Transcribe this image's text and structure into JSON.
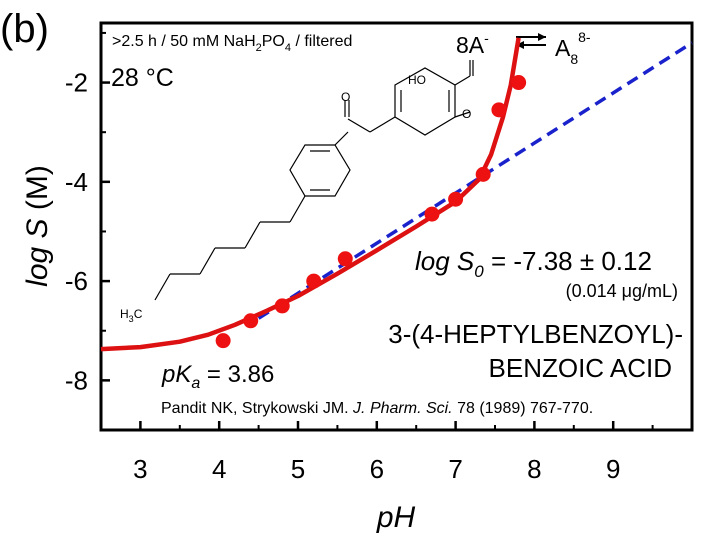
{
  "panel_label": "(b)",
  "conditions": "&gt;2.5 h / 50 mM NaH2PO4 / filtered",
  "temperature": "28 °C",
  "equilibrium": {
    "left": "8A",
    "left_sup": "-",
    "right": "A",
    "right_sub": "8",
    "right_sup": "8-"
  },
  "log_s0": {
    "prefix": "log S",
    "sub": "0",
    "value": " = -7.38 ± 0.12",
    "mass": "(0.014 μg/mL)"
  },
  "pka": {
    "prefix": "pK",
    "sub": "a",
    "value": " = 3.86"
  },
  "compound": {
    "line1": "3-(4-HEPTYLBENZOYL)-",
    "line2": "BENZOIC ACID"
  },
  "citation": {
    "authors": "Pandit NK, Strykowski JM. ",
    "journal": "J. Pharm. Sci.",
    "details": " 78 (1989) 767-770."
  },
  "structure_labels": {
    "oh": "HO",
    "carbonyl_o": "O",
    "acid_o": "O",
    "methyl": "H3C"
  },
  "colors": {
    "fit": "#dd1111",
    "intrinsic": "#1a22cc",
    "points": "#ee1111"
  },
  "chart_data": {
    "type": "scatter",
    "xlabel": "pH",
    "ylabel": "log S (M)",
    "xlim": [
      2.5,
      10.0
    ],
    "ylim": [
      -9.0,
      -0.8
    ],
    "xticks": [
      3,
      4,
      5,
      6,
      7,
      8,
      9
    ],
    "yticks": [
      -2,
      -4,
      -6,
      -8
    ],
    "series": [
      {
        "points": [
          {
            "x": 4.05,
            "y": -7.2
          },
          {
            "x": 4.4,
            "y": -6.8
          },
          {
            "x": 4.8,
            "y": -6.5
          },
          {
            "x": 5.2,
            "y": -6.0
          },
          {
            "x": 5.6,
            "y": -5.55
          },
          {
            "x": 6.7,
            "y": -4.65
          },
          {
            "x": 7.0,
            "y": -4.35
          },
          {
            "x": 7.35,
            "y": -3.85
          },
          {
            "x": 7.55,
            "y": -2.55
          },
          {
            "x": 7.8,
            "y": -2.0
          }
        ]
      }
    ],
    "fit_curve": {
      "x": [
        2.5,
        3.0,
        3.5,
        3.86,
        4.2,
        4.6,
        5.0,
        5.5,
        6.0,
        6.5,
        7.0,
        7.3,
        7.45,
        7.6,
        7.7,
        7.8
      ],
      "y": [
        -7.37,
        -7.33,
        -7.22,
        -7.08,
        -6.88,
        -6.6,
        -6.3,
        -5.85,
        -5.38,
        -4.9,
        -4.4,
        -3.95,
        -3.45,
        -2.7,
        -2.05,
        -1.1
      ]
    },
    "intrinsic_line": {
      "x": [
        4.5,
        10.0
      ],
      "y": [
        -6.75,
        -1.2
      ]
    }
  }
}
